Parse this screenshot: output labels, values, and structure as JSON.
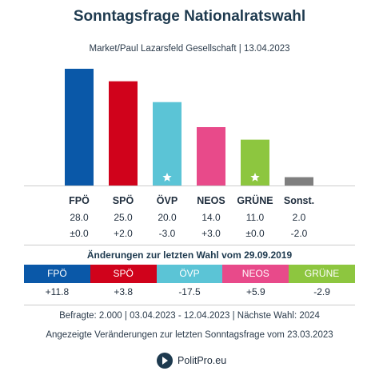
{
  "title": "Sonntagsfrage Nationalratswahl",
  "subtitle": "Market/Paul Lazarsfeld Gesellschaft | 13.04.2023",
  "chart_data": {
    "type": "bar",
    "categories": [
      "FPÖ",
      "SPÖ",
      "ÖVP",
      "NEOS",
      "GRÜNE",
      "Sonst."
    ],
    "values": [
      28.0,
      25.0,
      20.0,
      14.0,
      11.0,
      2.0
    ],
    "value_labels": [
      "28.0",
      "25.0",
      "20.0",
      "14.0",
      "11.0",
      "2.0"
    ],
    "change_labels": [
      "±0.0",
      "+2.0",
      "-3.0",
      "+3.0",
      "±0.0",
      "-2.0"
    ],
    "colors": [
      "#0a58a8",
      "#d0021b",
      "#5bc4d6",
      "#e84a8a",
      "#8dc63f",
      "#7f7f7f"
    ],
    "star_markers": [
      false,
      false,
      true,
      false,
      true,
      false
    ],
    "ylim": [
      0,
      28
    ]
  },
  "changes": {
    "title": "Änderungen zur letzten Wahl vom 29.09.2019",
    "parties": [
      {
        "name": "FPÖ",
        "value": "+11.8",
        "color": "#0a58a8"
      },
      {
        "name": "SPÖ",
        "value": "+3.8",
        "color": "#d0021b"
      },
      {
        "name": "ÖVP",
        "value": "-17.5",
        "color": "#5bc4d6"
      },
      {
        "name": "NEOS",
        "value": "+5.9",
        "color": "#e84a8a"
      },
      {
        "name": "GRÜNE",
        "value": "-2.9",
        "color": "#8dc63f"
      }
    ]
  },
  "footer": {
    "line1": "Befragte: 2.000 | 03.04.2023 - 12.04.2023 | Nächste Wahl: 2024",
    "line2": "Angezeigte Veränderungen zur letzten Sonntagsfrage vom 23.03.2023",
    "brand": "PolitPro.eu"
  }
}
